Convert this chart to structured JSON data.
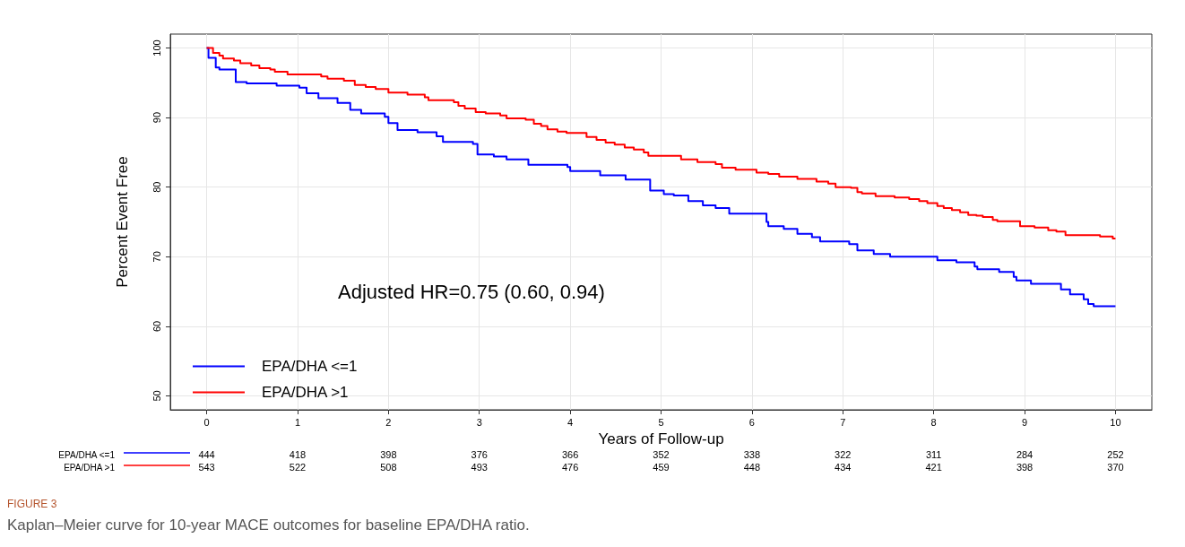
{
  "chart_data": {
    "type": "step",
    "xlabel": "Years of Follow-up",
    "ylabel": "Percent Event Free",
    "xlim": [
      -0.4,
      10.4
    ],
    "xticks": [
      0,
      1,
      2,
      3,
      4,
      5,
      6,
      7,
      8,
      9,
      10
    ],
    "ylim": [
      48,
      102
    ],
    "yticks": [
      50,
      60,
      70,
      80,
      90,
      100
    ],
    "grid": true,
    "legend": "bottom left",
    "marker": "none",
    "line_style": "solid",
    "series": [
      {
        "name": "EPA/DHA <=1",
        "color": "#0000ff",
        "x": [
          0,
          0.02,
          0.1,
          0.14,
          0.32,
          0.44,
          0.77,
          1.02,
          1.1,
          1.23,
          1.44,
          1.58,
          1.7,
          1.96,
          2.0,
          2.1,
          2.32,
          2.53,
          2.6,
          2.93,
          2.98,
          3.16,
          3.3,
          3.54,
          3.97,
          4.0,
          4.33,
          4.61,
          4.88,
          5.03,
          5.14,
          5.3,
          5.46,
          5.6,
          5.75,
          6.16,
          6.18,
          6.35,
          6.5,
          6.66,
          6.75,
          7.07,
          7.16,
          7.34,
          7.52,
          8.04,
          8.25,
          8.45,
          8.48,
          8.72,
          8.88,
          8.91,
          9.07,
          9.4,
          9.5,
          9.65,
          9.7,
          9.76,
          10
        ],
        "values": [
          100,
          98.6,
          97.2,
          96.9,
          95.1,
          94.9,
          94.6,
          94.3,
          93.5,
          92.8,
          92.1,
          91.1,
          90.6,
          90.1,
          89.2,
          88.2,
          87.9,
          87.3,
          86.5,
          86.2,
          84.7,
          84.4,
          84.0,
          83.2,
          82.9,
          82.3,
          81.7,
          81.1,
          79.5,
          79.0,
          78.8,
          78.0,
          77.4,
          77.0,
          76.2,
          75.0,
          74.4,
          74.0,
          73.3,
          72.8,
          72.2,
          71.8,
          70.9,
          70.4,
          70.0,
          69.5,
          69.2,
          68.6,
          68.2,
          67.8,
          67.1,
          66.6,
          66.1,
          65.3,
          64.6,
          63.9,
          63.2,
          62.9,
          62.9
        ]
      },
      {
        "name": "EPA/DHA >1",
        "color": "#ff0000",
        "x": [
          0,
          0.07,
          0.14,
          0.18,
          0.3,
          0.37,
          0.49,
          0.58,
          0.7,
          0.75,
          0.89,
          1.26,
          1.33,
          1.51,
          1.63,
          1.75,
          1.86,
          2.0,
          2.21,
          2.4,
          2.44,
          2.72,
          2.77,
          2.84,
          2.96,
          3.07,
          3.23,
          3.3,
          3.51,
          3.6,
          3.68,
          3.75,
          3.86,
          3.96,
          4.18,
          4.29,
          4.39,
          4.49,
          4.6,
          4.7,
          4.81,
          4.86,
          5.22,
          5.4,
          5.6,
          5.67,
          5.82,
          6.05,
          6.18,
          6.3,
          6.5,
          6.71,
          6.84,
          6.92,
          7.09,
          7.16,
          7.21,
          7.36,
          7.57,
          7.73,
          7.84,
          7.93,
          8.04,
          8.11,
          8.2,
          8.29,
          8.38,
          8.47,
          8.54,
          8.65,
          8.7,
          8.95,
          9.11,
          9.26,
          9.35,
          9.45,
          9.83,
          9.97,
          10
        ],
        "values": [
          100,
          99.3,
          98.9,
          98.5,
          98.2,
          97.8,
          97.5,
          97.1,
          96.9,
          96.6,
          96.2,
          95.9,
          95.6,
          95.3,
          94.7,
          94.4,
          94.1,
          93.6,
          93.3,
          92.9,
          92.5,
          92.2,
          91.7,
          91.3,
          90.8,
          90.6,
          90.3,
          89.9,
          89.7,
          89.1,
          88.8,
          88.3,
          88.0,
          87.8,
          87.2,
          86.8,
          86.4,
          86.1,
          85.7,
          85.4,
          85.0,
          84.5,
          84.0,
          83.6,
          83.3,
          82.8,
          82.5,
          82.1,
          81.9,
          81.5,
          81.2,
          80.8,
          80.5,
          80.0,
          79.9,
          79.3,
          79.1,
          78.7,
          78.5,
          78.3,
          78.0,
          77.7,
          77.3,
          77.0,
          76.7,
          76.4,
          76.0,
          75.9,
          75.7,
          75.3,
          75.1,
          74.4,
          74.2,
          73.8,
          73.6,
          73.1,
          72.9,
          72.6,
          72.6
        ]
      }
    ],
    "annotations": [
      "Adjusted HR=0.75 (0.60, 0.94)",
      "FIGURE 3",
      "Kaplan–Meier curve for 10-year MACE outcomes for baseline EPA/DHA ratio.",
      "444",
      "418",
      "398",
      "376",
      "366",
      "352",
      "338",
      "322",
      "311",
      "284",
      "252",
      "543",
      "522",
      "508",
      "493",
      "476",
      "459",
      "448",
      "434",
      "421",
      "398",
      "370"
    ]
  }
}
